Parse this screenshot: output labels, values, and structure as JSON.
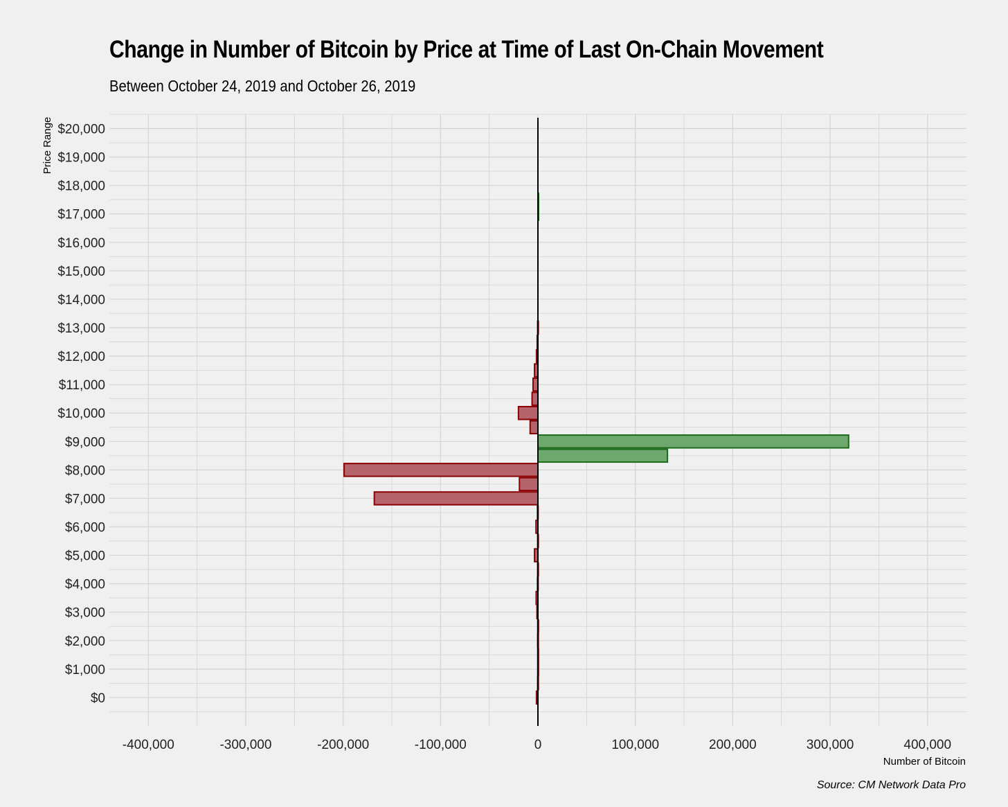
{
  "chart_data": {
    "type": "bar",
    "orientation": "horizontal",
    "title": "Change in Number of Bitcoin by Price at Time of Last On-Chain Movement",
    "subtitle": "Between October 24, 2019 and October 26, 2019",
    "xlabel": "Number of Bitcoin",
    "ylabel": "Price Range",
    "caption": "Source: CM Network Data Pro",
    "xlim": [
      -440000,
      440000
    ],
    "x_ticks": [
      -400000,
      -300000,
      -200000,
      -100000,
      0,
      100000,
      200000,
      300000,
      400000
    ],
    "x_tick_labels": [
      "-400,000",
      "-300,000",
      "-200,000",
      "-100,000",
      "0",
      "100,000",
      "200,000",
      "300,000",
      "400,000"
    ],
    "ylim": [
      -1000,
      20500
    ],
    "y_ticks": [
      0,
      1000,
      2000,
      3000,
      4000,
      5000,
      6000,
      7000,
      8000,
      9000,
      10000,
      11000,
      12000,
      13000,
      14000,
      15000,
      16000,
      17000,
      18000,
      19000,
      20000
    ],
    "y_tick_labels": [
      "$0",
      "$1,000",
      "$2,000",
      "$3,000",
      "$4,000",
      "$5,000",
      "$6,000",
      "$7,000",
      "$8,000",
      "$9,000",
      "$10,000",
      "$11,000",
      "$12,000",
      "$13,000",
      "$14,000",
      "$15,000",
      "$16,000",
      "$17,000",
      "$18,000",
      "$19,000",
      "$20,000"
    ],
    "grid": true,
    "colors": {
      "positive_fill": "#6fa86f",
      "positive_stroke": "#1a6b1a",
      "negative_fill": "#b5646b",
      "negative_stroke": "#8b0000",
      "background": "#f0f0f0",
      "grid": "#d4d4d4"
    },
    "bins": [
      {
        "price": 0,
        "value": -1500
      },
      {
        "price": 500,
        "value": -300
      },
      {
        "price": 1000,
        "value": -200
      },
      {
        "price": 1500,
        "value": -200
      },
      {
        "price": 2000,
        "value": -300
      },
      {
        "price": 2500,
        "value": -200
      },
      {
        "price": 3000,
        "value": -1000
      },
      {
        "price": 3500,
        "value": -1800
      },
      {
        "price": 4000,
        "value": -500
      },
      {
        "price": 4500,
        "value": -300
      },
      {
        "price": 5000,
        "value": -3500
      },
      {
        "price": 5500,
        "value": -300
      },
      {
        "price": 6000,
        "value": -2000
      },
      {
        "price": 6500,
        "value": -500
      },
      {
        "price": 7000,
        "value": -168000
      },
      {
        "price": 7500,
        "value": -19000
      },
      {
        "price": 8000,
        "value": -199000
      },
      {
        "price": 8500,
        "value": 133000
      },
      {
        "price": 9000,
        "value": 319000
      },
      {
        "price": 9500,
        "value": -8000
      },
      {
        "price": 10000,
        "value": -20000
      },
      {
        "price": 10500,
        "value": -6000
      },
      {
        "price": 11000,
        "value": -5000
      },
      {
        "price": 11500,
        "value": -3500
      },
      {
        "price": 12000,
        "value": -1500
      },
      {
        "price": 12500,
        "value": -800
      },
      {
        "price": 13000,
        "value": -300
      },
      {
        "price": 17000,
        "value": 200
      },
      {
        "price": 17500,
        "value": 200
      }
    ]
  }
}
